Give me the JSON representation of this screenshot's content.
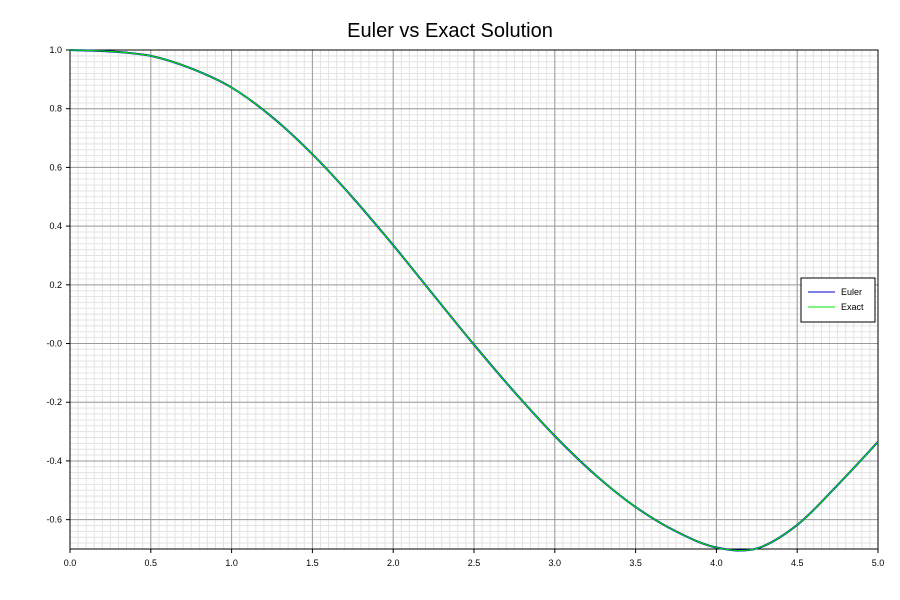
{
  "chart_data": {
    "type": "line",
    "title": "Euler vs Exact Solution",
    "xlabel": "",
    "ylabel": "",
    "xlim": [
      0.0,
      5.0
    ],
    "ylim": [
      -0.7,
      1.0
    ],
    "x_ticks": [
      "0.0",
      "0.5",
      "1.0",
      "1.5",
      "2.0",
      "2.5",
      "3.0",
      "3.5",
      "4.0",
      "4.5",
      "5.0"
    ],
    "y_ticks": [
      "-0.6",
      "-0.4",
      "-0.2",
      "-0.0",
      "0.2",
      "0.4",
      "0.6",
      "0.8",
      "1.0"
    ],
    "grid": true,
    "minor_grid": true,
    "legend_position": "right",
    "x": [
      0.0,
      0.25,
      0.5,
      0.75,
      1.0,
      1.25,
      1.5,
      1.75,
      2.0,
      2.25,
      2.5,
      2.75,
      3.0,
      3.25,
      3.5,
      3.75,
      4.0,
      4.25,
      4.5,
      4.75,
      5.0
    ],
    "series": [
      {
        "name": "Euler",
        "color": "#0000cc",
        "values": [
          1.0,
          0.995,
          0.98,
          0.937,
          0.872,
          0.772,
          0.645,
          0.497,
          0.335,
          0.165,
          -0.004,
          -0.165,
          -0.315,
          -0.447,
          -0.557,
          -0.64,
          -0.695,
          -0.698,
          -0.618,
          -0.482,
          -0.335
        ]
      },
      {
        "name": "Exact",
        "color": "#00e000",
        "values": [
          1.0,
          0.995,
          0.98,
          0.937,
          0.872,
          0.772,
          0.645,
          0.497,
          0.335,
          0.165,
          -0.004,
          -0.165,
          -0.315,
          -0.447,
          -0.557,
          -0.64,
          -0.695,
          -0.698,
          -0.618,
          -0.482,
          -0.335
        ]
      }
    ]
  }
}
